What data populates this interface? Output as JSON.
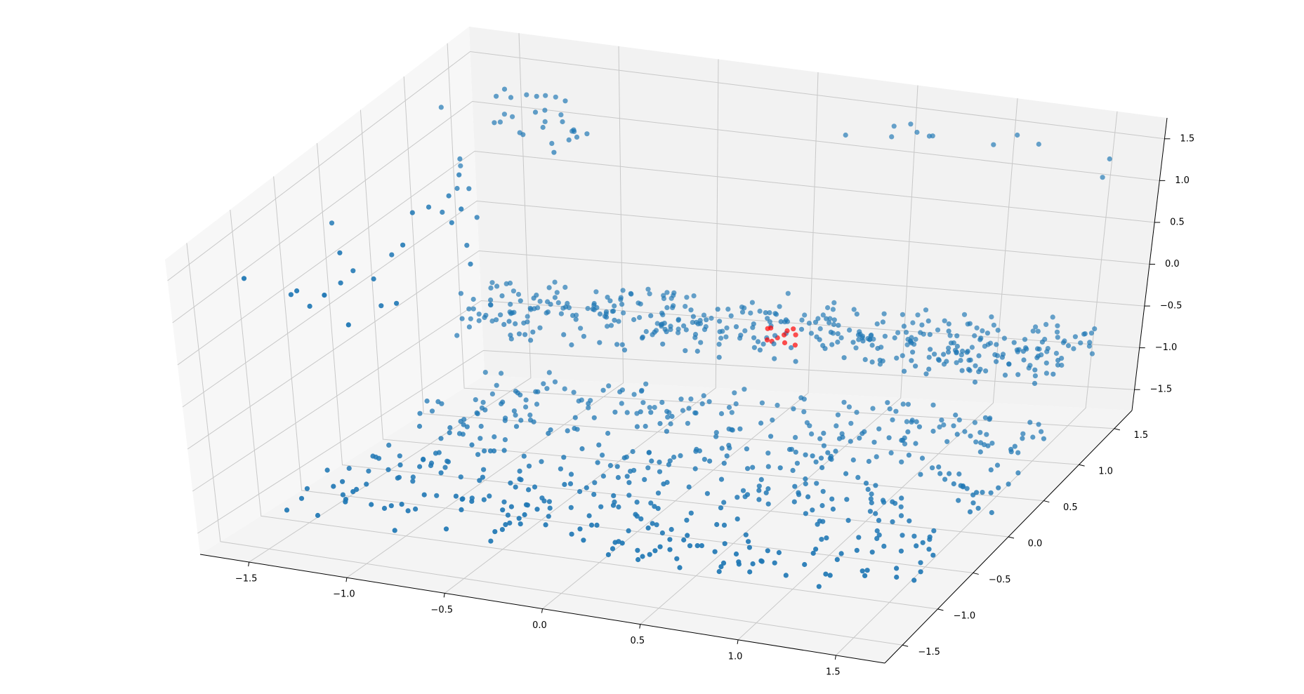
{
  "chart_data": {
    "type": "scatter",
    "projection": "3d",
    "grid": true,
    "xlim": [
      -1.75,
      1.75
    ],
    "ylim": [
      -1.75,
      1.75
    ],
    "zlim": [
      -1.75,
      1.75
    ],
    "x_ticks": [
      "−1.5",
      "−1.0",
      "−0.5",
      "0.0",
      "0.5",
      "1.0",
      "1.5"
    ],
    "y_ticks": [
      "−1.5",
      "−1.0",
      "−0.5",
      "0.0",
      "0.5",
      "1.0",
      "1.5"
    ],
    "z_ticks": [
      "−1.5",
      "−1.0",
      "−0.5",
      "0.0",
      "0.5",
      "1.0",
      "1.5"
    ],
    "pane_color": "#f2f2f2",
    "grid_color": "#c8c8c8",
    "series": [
      {
        "color": "#1f77b4",
        "clusters": [
          {
            "shape": "band",
            "x": [
              -1.6,
              1.6
            ],
            "y": [
              1.1,
              1.6
            ],
            "z": [
              -1.0,
              -0.55
            ],
            "count": 420
          },
          {
            "shape": "band",
            "x": [
              -1.6,
              1.6
            ],
            "y": [
              -1.1,
              1.3
            ],
            "z": [
              -1.65,
              -1.35
            ],
            "count": 560
          },
          {
            "shape": "band",
            "x": [
              -1.7,
              -1.0
            ],
            "y": [
              -1.5,
              1.5
            ],
            "z": [
              0.6,
              1.4
            ],
            "count": 34
          },
          {
            "shape": "band",
            "x": [
              -1.5,
              -1.0
            ],
            "y": [
              1.3,
              1.6
            ],
            "z": [
              1.0,
              1.45
            ],
            "count": 24
          },
          {
            "shape": "band",
            "x": [
              0.2,
              1.7
            ],
            "y": [
              1.45,
              1.6
            ],
            "z": [
              1.15,
              1.5
            ],
            "count": 12
          }
        ]
      },
      {
        "color": "#ff0000",
        "clusters": [
          {
            "shape": "band",
            "x": [
              -0.1,
              0.15
            ],
            "y": [
              1.3,
              1.45
            ],
            "z": [
              -0.95,
              -0.75
            ],
            "count": 11
          }
        ]
      }
    ]
  }
}
